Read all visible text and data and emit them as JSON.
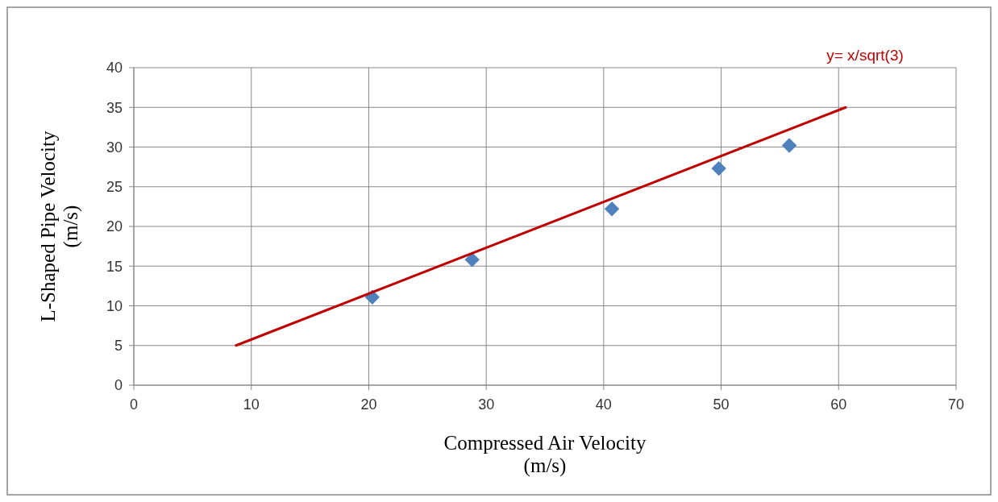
{
  "chart_data": {
    "type": "scatter",
    "xlabel": "Compressed Air Velocity (m/s)",
    "ylabel": "L-Shaped Pipe Velocity (m/s)",
    "xlim": [
      0,
      70
    ],
    "xticks": [
      0,
      10,
      20,
      30,
      40,
      50,
      60,
      70
    ],
    "ylim": [
      0,
      40
    ],
    "yticks": [
      0,
      5,
      10,
      15,
      20,
      25,
      30,
      35,
      40
    ],
    "grid": true,
    "marker": "diamond",
    "series": [
      {
        "color": "#4f81bd",
        "x": [
          20.3,
          28.8,
          40.7,
          49.8,
          55.8
        ],
        "values": [
          11.1,
          15.8,
          22.2,
          27.3,
          30.2
        ]
      },
      {
        "type": "line",
        "color": "#c00000",
        "x": [
          8.7,
          60.6
        ],
        "values": [
          5.0,
          35.0
        ],
        "marker": "none",
        "line_style": "solid"
      }
    ],
    "annotations": [
      {
        "text": "y= x/sqrt(3)",
        "x": 60.6,
        "y": 35
      }
    ]
  }
}
